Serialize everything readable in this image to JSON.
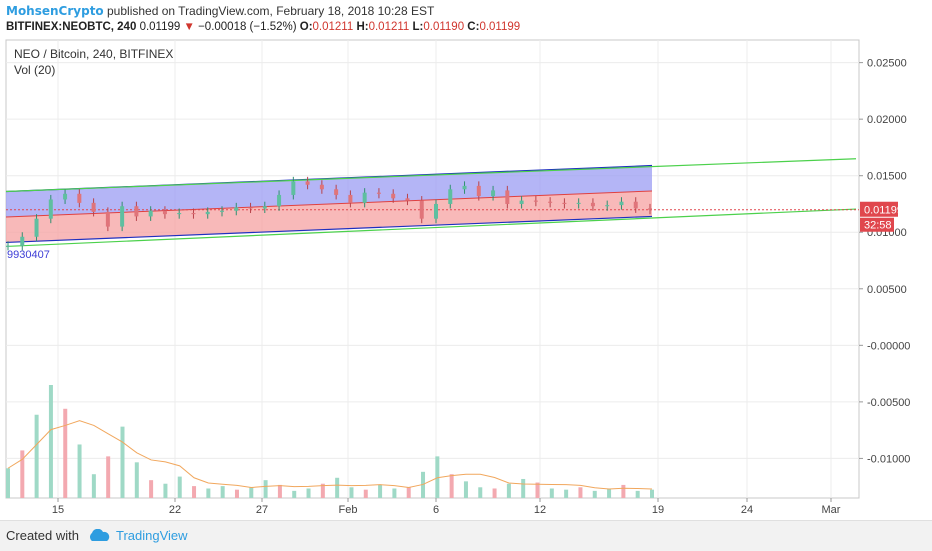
{
  "header": {
    "author": "MohsenCrypto",
    "published_text": " published on TradingView.com, February 18, 2018 10:28 EST",
    "symbol": "BITFINEX:NEOBTC, 240",
    "last": "0.01199",
    "change_arrow": "▼",
    "change": "−0.00018 (−1.52%)",
    "o_label": "O:",
    "o": "0.01211",
    "h_label": "H:",
    "h": "0.01211",
    "l_label": "L:",
    "l": "0.01190",
    "c_label": "C:",
    "c": "0.01199"
  },
  "legend": {
    "title": "NEO / Bitcoin, 240, BITFINEX",
    "vol": "Vol (20)"
  },
  "footer": {
    "created": "Created with",
    "brand": "TradingView"
  },
  "colors": {
    "up": "#5fbfa0",
    "down": "#e0747a",
    "vol_up": "#9fd9c6",
    "vol_down": "#f3a9b0",
    "channel_upper": "#9b9cf3",
    "channel_lower": "#f6a2a2",
    "trendline": "#4cd14c",
    "ma": "#f1a75d",
    "price_label_bg": "#e0474d"
  },
  "chart_data": {
    "type": "candlestick",
    "title": "NEO / Bitcoin, 240, BITFINEX",
    "y_axis": {
      "ticks": [
        "0.02500",
        "0.02000",
        "0.01500",
        "0.01000",
        "0.00500",
        "-0.00000",
        "-0.00500",
        "-0.01000"
      ],
      "range": [
        -0.0135,
        0.027
      ]
    },
    "x_axis": {
      "ticks": [
        "15",
        "22",
        "27",
        "Feb",
        "6",
        "12",
        "19",
        "24",
        "Mar"
      ]
    },
    "current_price": "0.01199",
    "countdown": "32:58",
    "channel_label": "9930407",
    "price_path": [
      [
        0,
        0.0088
      ],
      [
        2,
        0.0096
      ],
      [
        4,
        0.0112
      ],
      [
        5,
        0.0129
      ],
      [
        6,
        0.0134
      ],
      [
        7,
        0.0126
      ],
      [
        8,
        0.0118
      ],
      [
        9,
        0.0105
      ],
      [
        10,
        0.0123
      ],
      [
        11,
        0.0114
      ],
      [
        12,
        0.0119
      ],
      [
        13,
        0.0116
      ],
      [
        14,
        0.0117
      ],
      [
        15,
        0.0116
      ],
      [
        16,
        0.0118
      ],
      [
        17,
        0.0119
      ],
      [
        18,
        0.0122
      ],
      [
        19,
        0.0121
      ],
      [
        20,
        0.0123
      ],
      [
        21,
        0.0133
      ],
      [
        22,
        0.0145
      ],
      [
        23,
        0.0142
      ],
      [
        24,
        0.0138
      ],
      [
        25,
        0.0133
      ],
      [
        26,
        0.0126
      ],
      [
        27,
        0.0135
      ],
      [
        28,
        0.0134
      ],
      [
        29,
        0.013
      ],
      [
        30,
        0.0128
      ],
      [
        31,
        0.0112
      ],
      [
        32,
        0.0125
      ],
      [
        33,
        0.0138
      ],
      [
        34,
        0.0141
      ],
      [
        35,
        0.0132
      ],
      [
        36,
        0.0137
      ],
      [
        37,
        0.0125
      ],
      [
        38,
        0.0128
      ],
      [
        39,
        0.0127
      ],
      [
        40,
        0.0126
      ],
      [
        41,
        0.0125
      ],
      [
        42,
        0.0126
      ],
      [
        43,
        0.0123
      ],
      [
        44,
        0.0124
      ],
      [
        45,
        0.0127
      ],
      [
        46,
        0.01211
      ],
      [
        47,
        0.01199
      ]
    ],
    "volume": [
      0.0025,
      0.004,
      0.007,
      0.0095,
      0.0075,
      0.0045,
      0.002,
      0.0035,
      0.006,
      0.003,
      0.0015,
      0.0012,
      0.0018,
      0.001,
      0.0008,
      0.001,
      0.0007,
      0.0009,
      0.0015,
      0.0011,
      0.0006,
      0.0008,
      0.0012,
      0.0017,
      0.0009,
      0.0007,
      0.0011,
      0.0008,
      0.0009,
      0.0022,
      0.0035,
      0.002,
      0.0014,
      0.0009,
      0.0008,
      0.0012,
      0.0016,
      0.0013,
      0.0008,
      0.0007,
      0.0009,
      0.0006,
      0.0008,
      0.0011,
      0.0006,
      0.0007
    ]
  }
}
